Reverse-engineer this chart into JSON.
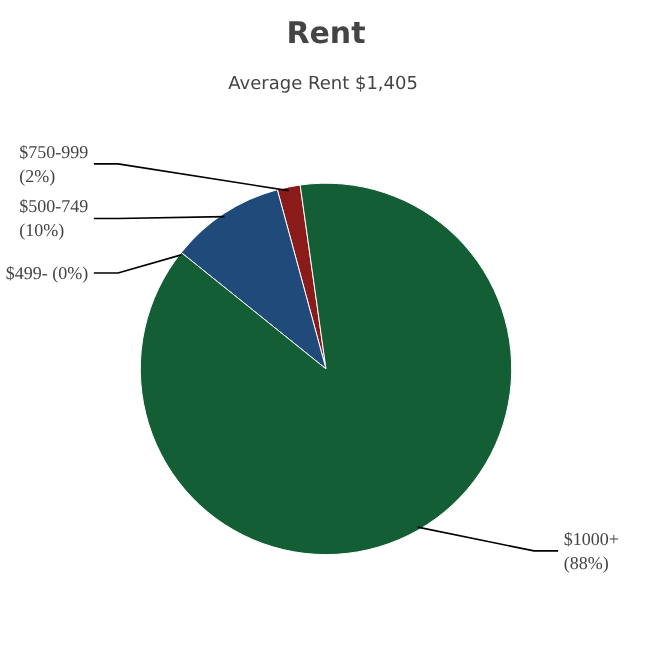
{
  "chart_data": {
    "type": "pie",
    "title": "Rent",
    "subtitle": "Average Rent  $1,405",
    "categories": [
      "$750-999",
      "$500-749",
      "$499-",
      "$1000+"
    ],
    "values": [
      2,
      10,
      0,
      88
    ],
    "colors": [
      "#8b1a1a",
      "#1f4a7a",
      "#2a6a3a",
      "#135e35"
    ],
    "value_labels": [
      "(2%)",
      "(10%)",
      "(0%)",
      "(88%)"
    ]
  }
}
